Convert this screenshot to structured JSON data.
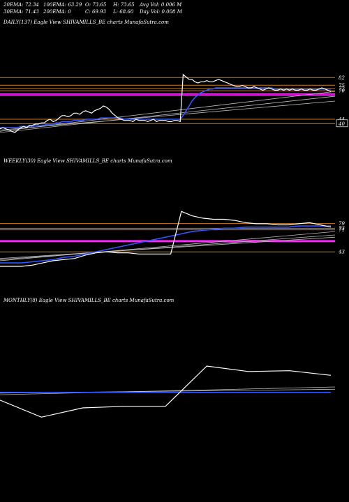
{
  "header": {
    "row1": [
      {
        "label": "20EMA:",
        "value": "72.34"
      },
      {
        "label": "100EMA:",
        "value": "63.29"
      },
      {
        "label": "O:",
        "value": "73.65"
      },
      {
        "label": "H:",
        "value": "73.65"
      },
      {
        "label": "Avg Vol:",
        "value": "0.006  M"
      }
    ],
    "row2": [
      {
        "label": "30EMA:",
        "value": "71.43"
      },
      {
        "label": "200EMA:",
        "value": "0"
      },
      {
        "label": "C:",
        "value": "69.93"
      },
      {
        "label": "L:",
        "value": "68.60"
      },
      {
        "label": "Day Vol:",
        "value": "0.008  M"
      }
    ]
  },
  "colors": {
    "background": "#000000",
    "price": "#ffffff",
    "ema_blue": "#3355ff",
    "orange_line": "#cc7a22",
    "magenta_band": "#ee33ee",
    "gray_ma": "#bbbbbb"
  },
  "chart_data": [
    {
      "type": "line",
      "title": "DAILY(137) Eagle   View  SHIVAMILLS_BE charts MunafaSutra.com",
      "levels": [
        {
          "label": "82",
          "value": 82
        },
        {
          "label": "75",
          "value": 75
        },
        {
          "label": "72",
          "value": 72
        },
        {
          "label": "70",
          "value": 70
        },
        {
          "label": "44",
          "value": 44
        },
        {
          "label": "40",
          "value": 40,
          "boxed": true
        }
      ],
      "level_ylim": [
        37,
        86
      ],
      "ylim": [
        36,
        88
      ],
      "price": [
        39,
        40,
        39,
        38,
        37,
        36,
        38,
        40,
        41,
        40,
        42,
        42,
        43,
        43,
        44,
        44,
        46,
        47,
        45,
        46,
        48,
        50,
        50,
        49,
        50,
        52,
        52,
        51,
        53,
        54,
        53,
        52,
        54,
        55,
        56,
        58,
        57,
        55,
        52,
        50,
        48,
        47,
        46,
        46,
        46,
        45,
        47,
        46,
        46,
        46,
        45,
        46,
        47,
        45,
        46,
        46,
        46,
        45,
        45,
        46,
        46,
        45,
        84,
        82,
        80,
        80,
        78,
        77,
        78,
        78,
        79,
        78,
        78,
        79,
        80,
        79,
        78,
        77,
        76,
        75,
        74,
        74,
        75,
        74,
        73,
        73,
        74,
        73,
        72,
        71,
        72,
        73,
        72,
        71,
        71,
        72,
        71,
        72,
        71,
        72,
        71,
        71,
        72,
        71,
        71,
        72,
        71,
        71,
        72,
        73,
        72,
        71,
        70
      ],
      "ema_blue": [
        40,
        40,
        40,
        40,
        40,
        40,
        40,
        41,
        41,
        41,
        41,
        41,
        42,
        42,
        42,
        42,
        43,
        43,
        43,
        44,
        44,
        45,
        45,
        45,
        45,
        46,
        46,
        46,
        46,
        47,
        47,
        47,
        47,
        47,
        48,
        48,
        48,
        48,
        48,
        48,
        48,
        48,
        47,
        47,
        47,
        47,
        47,
        47,
        47,
        47,
        47,
        47,
        47,
        47,
        47,
        47,
        47,
        47,
        47,
        47,
        47,
        47,
        50,
        54,
        58,
        62,
        65,
        67,
        69,
        70,
        71,
        72,
        72,
        73,
        73,
        73,
        73,
        73,
        73,
        73,
        73,
        73,
        73,
        73,
        73,
        73,
        73,
        73,
        73,
        73,
        73,
        73,
        73,
        72,
        72,
        72,
        72,
        72,
        72,
        72,
        72,
        72,
        72,
        72,
        72,
        72,
        72,
        72,
        72,
        72,
        72,
        72,
        72
      ],
      "gray_mas": [
        {
          "from": 37,
          "to": 70
        },
        {
          "from": 36,
          "to": 66
        },
        {
          "from": 38,
          "to": 62
        }
      ],
      "orange_levels": [
        82,
        75,
        72,
        70,
        44,
        40
      ],
      "magenta_levels": [
        68,
        67
      ]
    },
    {
      "type": "line",
      "title": "WEEKLY(30) Eagle   View  SHIVAMILLS_BE charts MunafaSutra.com",
      "levels": [
        {
          "label": "79",
          "value": 79
        },
        {
          "label": "73",
          "value": 73
        },
        {
          "label": "71",
          "value": 71
        },
        {
          "label": "43",
          "value": 43
        }
      ],
      "level_ylim": [
        37,
        84
      ],
      "ylim": [
        30,
        86
      ],
      "price": [
        35,
        35,
        35,
        36,
        38,
        40,
        41,
        42,
        45,
        47,
        48,
        47,
        47,
        46,
        46,
        46,
        46,
        84,
        80,
        78,
        77,
        77,
        76,
        74,
        73,
        73,
        72,
        72,
        73,
        74,
        72,
        70
      ],
      "ema_blue": [
        38,
        38,
        38,
        39,
        40,
        41,
        43,
        44,
        46,
        48,
        50,
        52,
        54,
        56,
        58,
        60,
        62,
        64,
        66,
        67,
        68,
        69,
        69,
        70,
        70,
        70,
        70,
        70,
        71,
        71,
        71,
        71
      ],
      "gray_mas": [
        {
          "from": 40,
          "to": 66
        },
        {
          "from": 41,
          "to": 63
        },
        {
          "from": 42,
          "to": 61
        }
      ],
      "orange_levels": [
        79,
        73,
        71,
        43
      ],
      "magenta_levels": [
        58,
        57
      ]
    },
    {
      "type": "line",
      "title": "MONTHLY(8) Eagle   View  SHIVAMILLS_BE charts MunafaSutra.com",
      "levels": [],
      "ylim": [
        20,
        110
      ],
      "price": [
        48,
        26,
        38,
        40,
        40,
        92,
        85,
        86,
        80
      ],
      "ema_blue": [
        58,
        58,
        58,
        58,
        58,
        58,
        58,
        58,
        58
      ],
      "gray_mas": [
        {
          "from": 55,
          "to": 65
        },
        {
          "from": 57,
          "to": 62
        }
      ],
      "orange_levels": [],
      "magenta_levels": []
    }
  ]
}
